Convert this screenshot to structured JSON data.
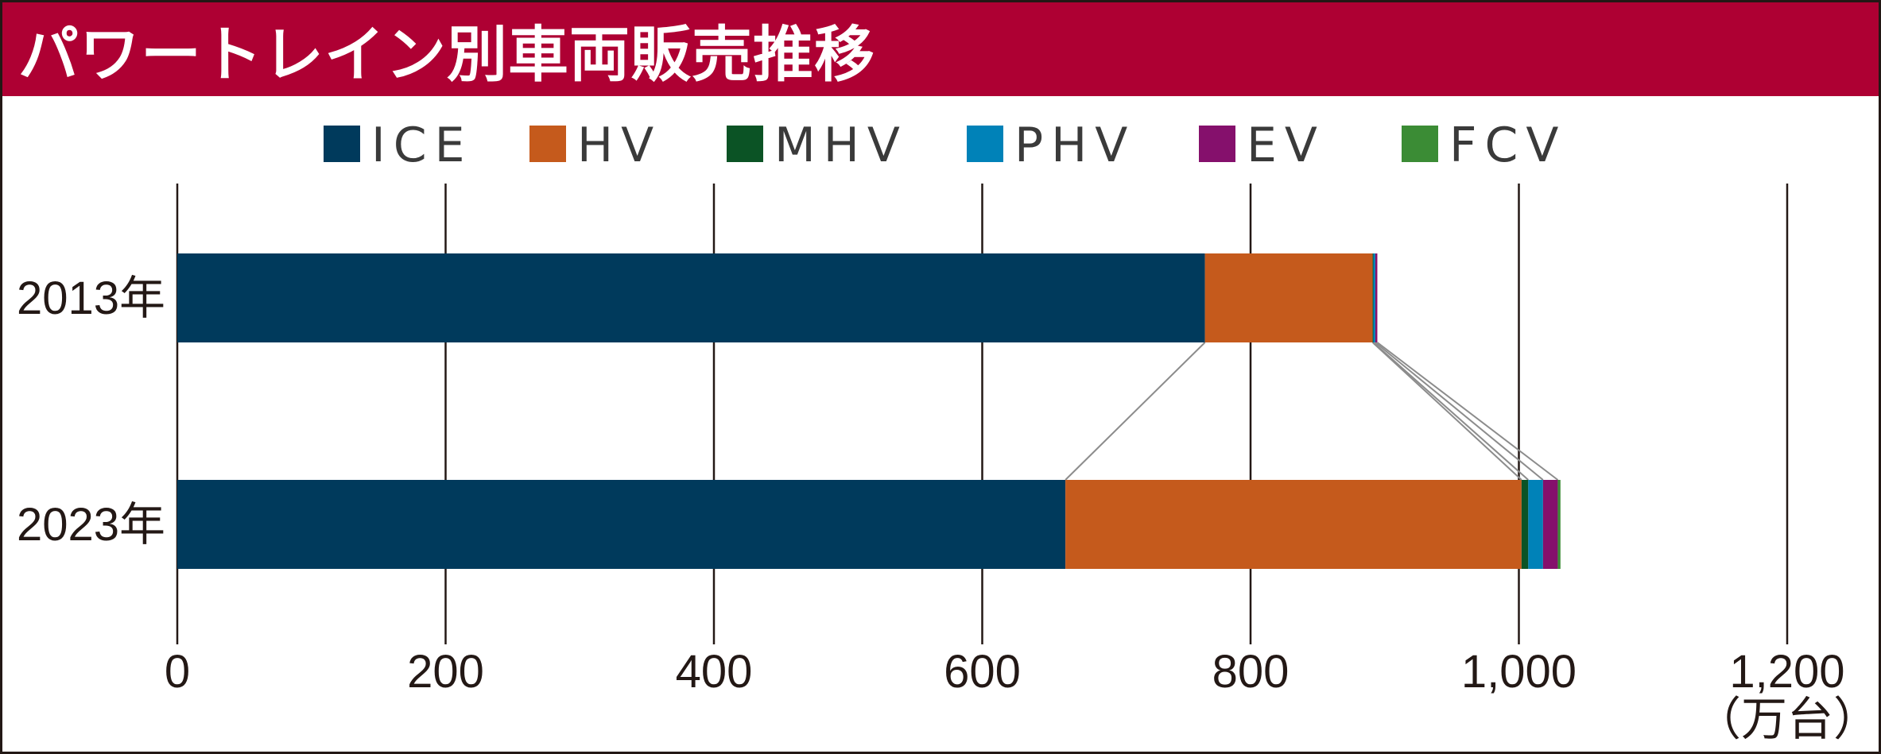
{
  "title": "パワートレイン別車両販売推移",
  "colors": {
    "title_background": "#AE0033",
    "ICE": "#003A5C",
    "HV": "#C55A1C",
    "MHV": "#0B5325",
    "PHV": "#0082B8",
    "EV": "#85106C",
    "FCV": "#3B8C35"
  },
  "chart_data": {
    "type": "bar",
    "orientation": "horizontal",
    "stacked": true,
    "categories": [
      "2013年",
      "2023年"
    ],
    "series": [
      {
        "name": "ICE",
        "values": [
          766,
          662
        ]
      },
      {
        "name": "HV",
        "values": [
          125,
          340
        ]
      },
      {
        "name": "MHV",
        "values": [
          0.5,
          5
        ]
      },
      {
        "name": "PHV",
        "values": [
          1.5,
          11
        ]
      },
      {
        "name": "EV",
        "values": [
          1.5,
          11
        ]
      },
      {
        "name": "FCV",
        "values": [
          0,
          2
        ]
      }
    ],
    "xlim": [
      0,
      1200
    ],
    "xticks": [
      0,
      200,
      400,
      600,
      800,
      1000,
      1200
    ],
    "xtick_labels": [
      "0",
      "200",
      "400",
      "600",
      "800",
      "1,000",
      "1,200"
    ],
    "unit_label": "（万台）",
    "legend_position": "top",
    "grid": "vertical",
    "connector_lines": true
  }
}
